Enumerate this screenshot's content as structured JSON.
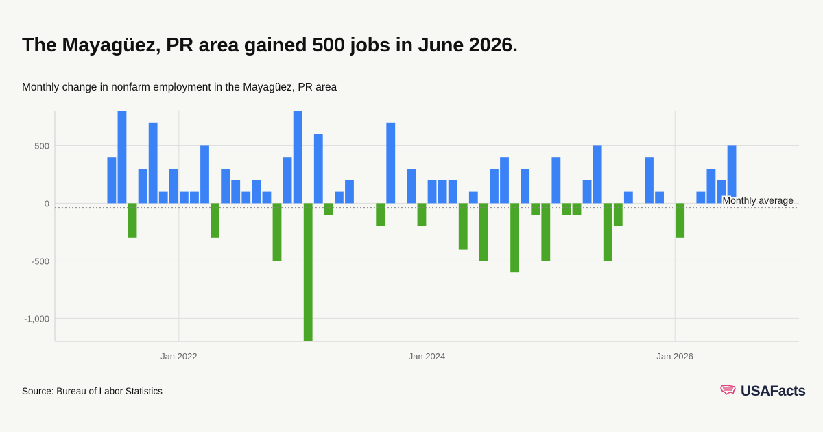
{
  "title": "The Mayagüez, PR area gained 500 jobs in June 2026.",
  "subtitle": "Monthly change in nonfarm employment in the Mayagüez, PR area",
  "source": "Source: Bureau of Labor Statistics",
  "logo": {
    "text": "USAFacts",
    "icon": "usa-map-icon"
  },
  "colors": {
    "positive": "#3b82f6",
    "negative": "#4aa626",
    "average_line": "#888888",
    "grid": "#dddddd",
    "axis_text": "#666666"
  },
  "chart_data": {
    "type": "bar",
    "x_start": "2021-01",
    "x_end": "2026-12",
    "ylim": [
      -1200,
      800
    ],
    "yticks": [
      500,
      0,
      -500,
      -1000
    ],
    "ytick_labels": [
      "500",
      "0",
      "-500",
      "-1,000"
    ],
    "xticks": [
      {
        "date": "2022-01",
        "label": "Jan 2022"
      },
      {
        "date": "2024-01",
        "label": "Jan 2024"
      },
      {
        "date": "2026-01",
        "label": "Jan 2026"
      }
    ],
    "average": {
      "label": "Monthly average",
      "value": -40
    },
    "grid": true,
    "points": [
      {
        "date": "2021-06",
        "value": 400
      },
      {
        "date": "2021-07",
        "value": 800
      },
      {
        "date": "2021-08",
        "value": -300
      },
      {
        "date": "2021-09",
        "value": 300
      },
      {
        "date": "2021-10",
        "value": 700
      },
      {
        "date": "2021-11",
        "value": 100
      },
      {
        "date": "2021-12",
        "value": 300
      },
      {
        "date": "2022-01",
        "value": 100
      },
      {
        "date": "2022-02",
        "value": 100
      },
      {
        "date": "2022-03",
        "value": 500
      },
      {
        "date": "2022-04",
        "value": -300
      },
      {
        "date": "2022-05",
        "value": 300
      },
      {
        "date": "2022-06",
        "value": 200
      },
      {
        "date": "2022-07",
        "value": 100
      },
      {
        "date": "2022-08",
        "value": 200
      },
      {
        "date": "2022-09",
        "value": 100
      },
      {
        "date": "2022-10",
        "value": -500
      },
      {
        "date": "2022-11",
        "value": 400
      },
      {
        "date": "2022-12",
        "value": 800
      },
      {
        "date": "2023-01",
        "value": -1200
      },
      {
        "date": "2023-02",
        "value": 600
      },
      {
        "date": "2023-03",
        "value": -100
      },
      {
        "date": "2023-04",
        "value": 100
      },
      {
        "date": "2023-05",
        "value": 200
      },
      {
        "date": "2023-06",
        "value": 0
      },
      {
        "date": "2023-07",
        "value": 0
      },
      {
        "date": "2023-08",
        "value": -200
      },
      {
        "date": "2023-09",
        "value": 700
      },
      {
        "date": "2023-10",
        "value": 0
      },
      {
        "date": "2023-11",
        "value": 300
      },
      {
        "date": "2023-12",
        "value": -200
      },
      {
        "date": "2024-01",
        "value": 200
      },
      {
        "date": "2024-02",
        "value": 200
      },
      {
        "date": "2024-03",
        "value": 200
      },
      {
        "date": "2024-04",
        "value": -400
      },
      {
        "date": "2024-05",
        "value": 100
      },
      {
        "date": "2024-06",
        "value": -500
      },
      {
        "date": "2024-07",
        "value": 300
      },
      {
        "date": "2024-08",
        "value": 400
      },
      {
        "date": "2024-09",
        "value": -600
      },
      {
        "date": "2024-10",
        "value": 300
      },
      {
        "date": "2024-11",
        "value": -100
      },
      {
        "date": "2024-12",
        "value": -500
      },
      {
        "date": "2025-01",
        "value": 400
      },
      {
        "date": "2025-02",
        "value": -100
      },
      {
        "date": "2025-03",
        "value": -100
      },
      {
        "date": "2025-04",
        "value": 200
      },
      {
        "date": "2025-05",
        "value": 500
      },
      {
        "date": "2025-06",
        "value": -500
      },
      {
        "date": "2025-07",
        "value": -200
      },
      {
        "date": "2025-08",
        "value": 100
      },
      {
        "date": "2025-09",
        "value": 0
      },
      {
        "date": "2025-10",
        "value": 400
      },
      {
        "date": "2025-11",
        "value": 100
      },
      {
        "date": "2025-12",
        "value": 0
      },
      {
        "date": "2026-01",
        "value": -300
      },
      {
        "date": "2026-02",
        "value": 0
      },
      {
        "date": "2026-03",
        "value": 100
      },
      {
        "date": "2026-04",
        "value": 300
      },
      {
        "date": "2026-05",
        "value": 200
      },
      {
        "date": "2026-06",
        "value": 500
      }
    ]
  }
}
